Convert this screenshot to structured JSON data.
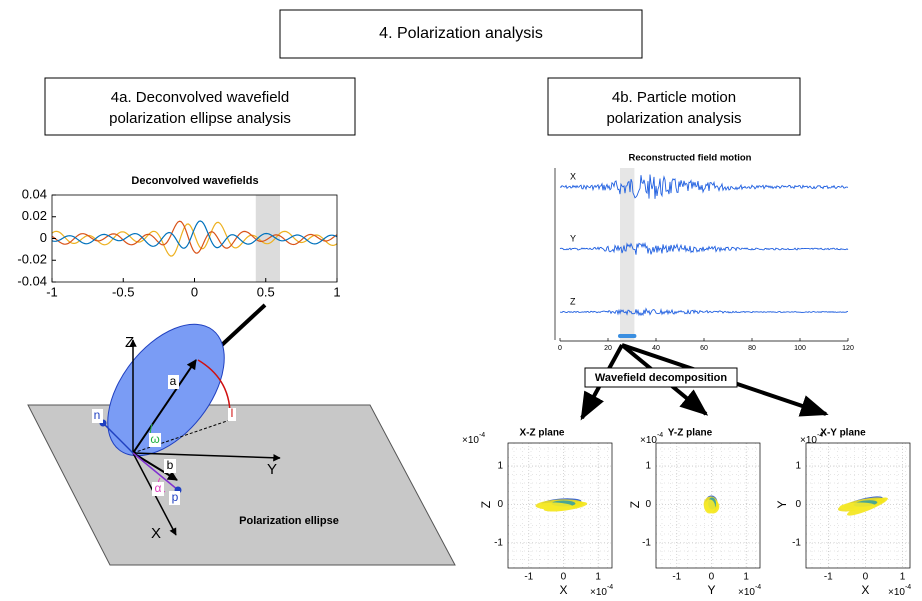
{
  "header": {
    "title": "4. Polarization analysis"
  },
  "panel_a": {
    "title": [
      "4a. Deconvolved wavefield",
      "polarization ellipse analysis"
    ],
    "chart": {
      "type": "line",
      "title": "Deconvolved wavefields",
      "xlim": [
        -1,
        1
      ],
      "xticks": [
        -1,
        -0.5,
        0,
        0.5,
        1
      ],
      "ylim": [
        -0.04,
        0.04
      ],
      "yticks": [
        -0.04,
        -0.02,
        0,
        0.02,
        0.04
      ],
      "highlight": [
        0.43,
        0.6
      ]
    },
    "diagram": {
      "axes": {
        "z": "Z",
        "y": "Y",
        "x": "X"
      },
      "labels": {
        "a": "a",
        "b": "b",
        "n": "n",
        "l": "l",
        "p": "p",
        "omega": "ω",
        "alpha": "α"
      },
      "caption": "Polarization ellipse"
    }
  },
  "panel_b": {
    "title": [
      "4b. Particle motion",
      "polarization analysis"
    ],
    "chart": {
      "type": "line",
      "title": "Reconstructed field motion",
      "traces": [
        "X",
        "Y",
        "Z"
      ],
      "xlim": [
        0,
        120
      ],
      "xticks": [
        0,
        20,
        40,
        60,
        80,
        100,
        120
      ],
      "highlight": [
        25,
        31
      ]
    },
    "decomposition": "Wavefield decomposition",
    "planes": [
      {
        "title": "X-Z plane",
        "xlabel": "X",
        "ylabel": "Z",
        "xlim": [
          -1.6,
          1.4
        ],
        "ylim": [
          -1.65,
          1.6
        ],
        "xticks": [
          -1,
          0,
          1
        ],
        "yticks": [
          -1,
          0,
          1
        ],
        "exponent": {
          "base": "×10",
          "power": "-4"
        }
      },
      {
        "title": "Y-Z plane",
        "xlabel": "Y",
        "ylabel": "Z",
        "xlim": [
          -1.6,
          1.4
        ],
        "ylim": [
          -1.65,
          1.6
        ],
        "xticks": [
          -1,
          0,
          1
        ],
        "yticks": [
          -1,
          0,
          1
        ],
        "exponent": {
          "base": "×10",
          "power": "-4"
        }
      },
      {
        "title": "X-Y plane",
        "xlabel": "X",
        "ylabel": "Y",
        "xlim": [
          -1.6,
          1.2
        ],
        "ylim": [
          -1.65,
          1.6
        ],
        "xticks": [
          -1,
          0,
          1
        ],
        "yticks": [
          -1,
          0,
          1
        ],
        "exponent": {
          "base": "×10",
          "power": "-4"
        }
      }
    ]
  }
}
